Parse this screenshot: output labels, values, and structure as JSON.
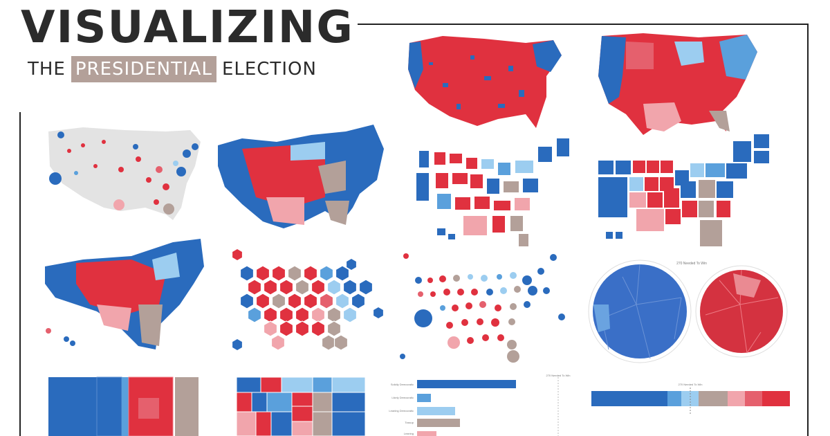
{
  "title": {
    "main": "VISUALIZING",
    "pre": "THE",
    "highlight": "PRESIDENTIAL",
    "post": "ELECTION"
  },
  "colors": {
    "dem_strong": "#2a6bbd",
    "dem_likely": "#5aa0dc",
    "dem_lean": "#9ccdf0",
    "tossup": "#b3a099",
    "rep_lean": "#f1a5ac",
    "rep_likely": "#e5606d",
    "rep_strong": "#e0313f",
    "neutral": "#e3e3e3",
    "highlight_bg": "#b3a099"
  },
  "panels": {
    "polar_title": "270 Needed To Win",
    "bar_title": "270 Needed To Win",
    "stack_title": "270 Needed To Win",
    "bar_rows": [
      "Solidly Democratic",
      "Likely Democratic",
      "Leaning Democratic",
      "Tossup",
      "Leaning"
    ]
  }
}
